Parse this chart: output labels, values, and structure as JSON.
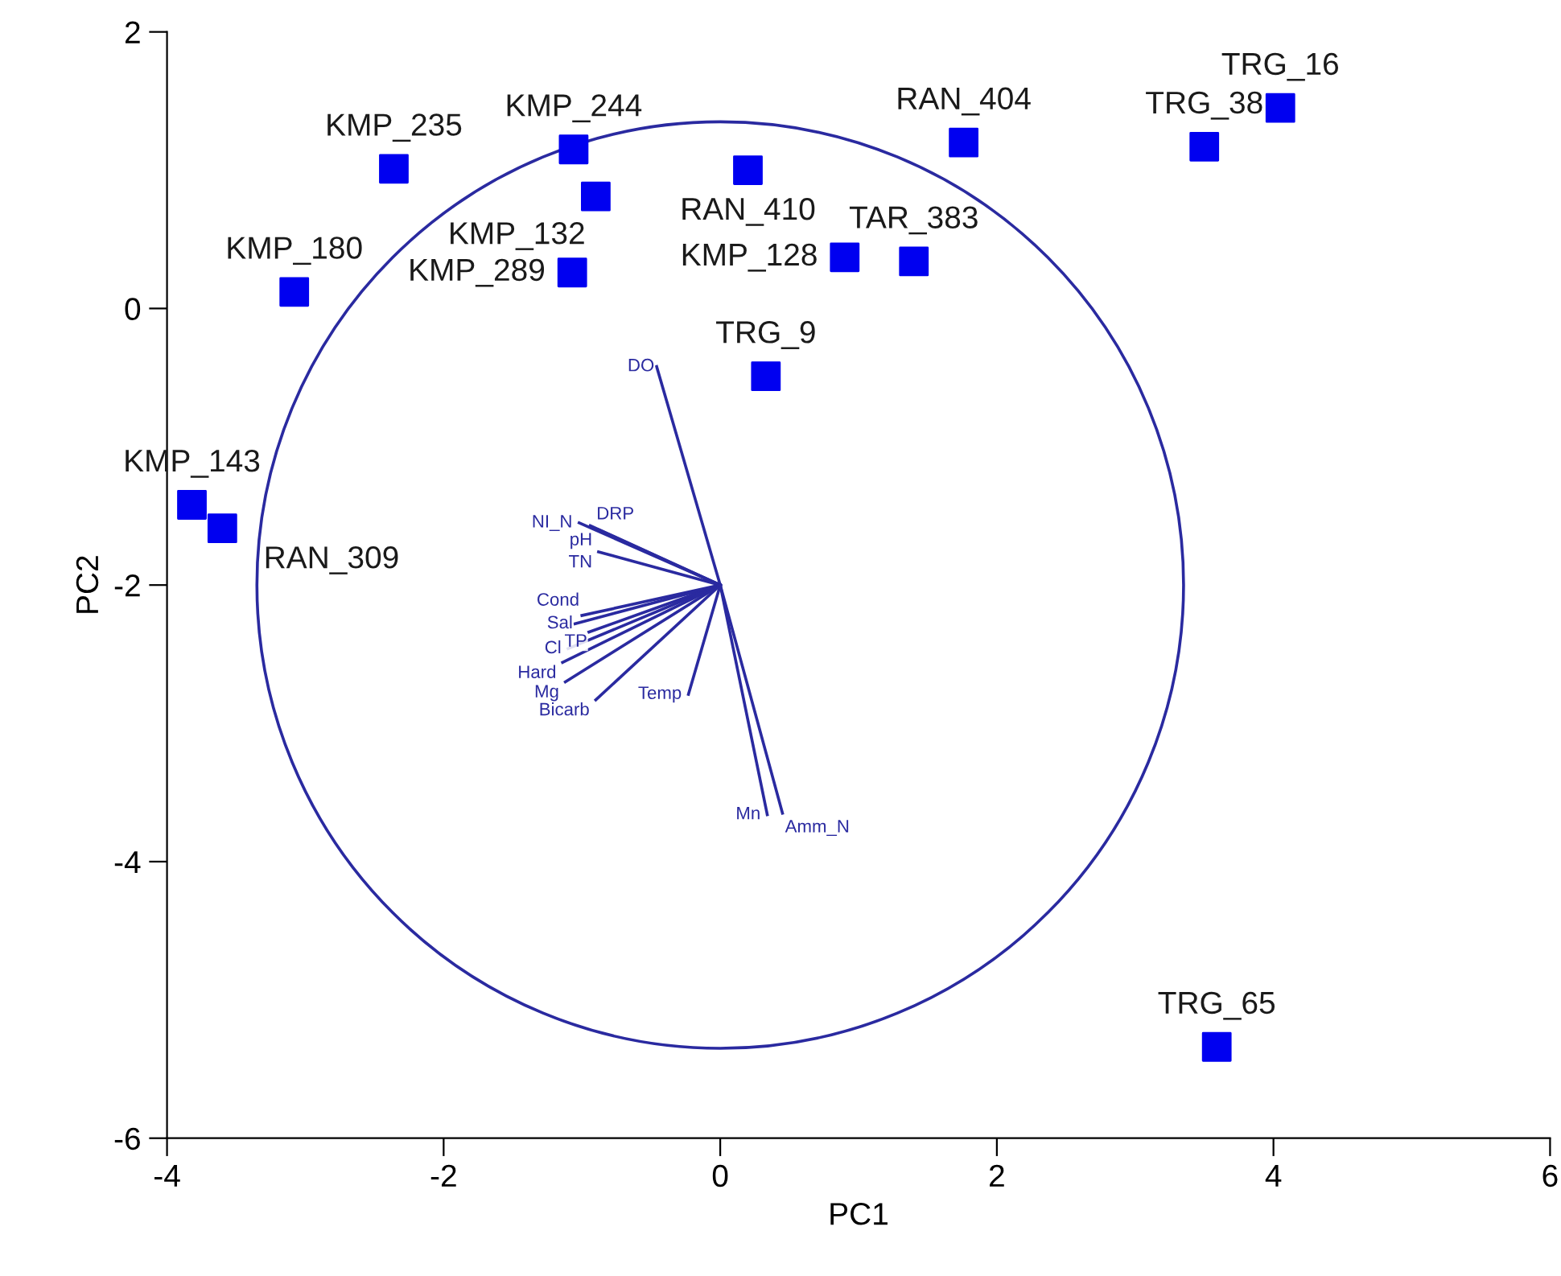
{
  "chart_data": {
    "type": "scatter",
    "xlabel": "PC1",
    "ylabel": "PC2",
    "xlim": [
      -4,
      6
    ],
    "ylim": [
      -6,
      2
    ],
    "xticks": [
      -4,
      -2,
      0,
      2,
      4,
      6
    ],
    "yticks": [
      -6,
      -4,
      -2,
      0,
      2
    ],
    "grid": false,
    "series": [
      {
        "marker": "square",
        "color": "#0000f0",
        "x": [
          -2.36,
          -1.06,
          -0.9,
          0.2,
          1.76,
          3.5,
          4.05,
          -3.08,
          -1.07,
          0.9,
          1.4,
          0.33,
          -3.82,
          -3.6,
          3.59
        ],
        "values": [
          1.01,
          1.15,
          0.81,
          1.0,
          1.2,
          1.17,
          1.45,
          0.12,
          0.26,
          0.37,
          0.34,
          -0.49,
          -1.42,
          -1.59,
          -5.34
        ]
      },
      {
        "type": "line",
        "name": "DO",
        "color": "#2a2aa0",
        "x": [
          0,
          -0.46
        ],
        "values": [
          -2,
          -0.42
        ]
      },
      {
        "type": "line",
        "name": "NI_N",
        "color": "#2a2aa0",
        "x": [
          0,
          -1.02
        ],
        "values": [
          -2,
          -1.55
        ]
      },
      {
        "type": "line",
        "name": "DRP",
        "color": "#2a2aa0",
        "x": [
          0,
          -0.94
        ],
        "values": [
          -2,
          -1.57
        ]
      },
      {
        "type": "line",
        "name": "pH",
        "color": "#2a2aa0",
        "x": [
          0,
          -0.88
        ],
        "values": [
          -2,
          -1.6
        ]
      },
      {
        "type": "line",
        "name": "TN",
        "color": "#2a2aa0",
        "x": [
          0,
          -0.88
        ],
        "values": [
          -2,
          -1.76
        ]
      },
      {
        "type": "line",
        "name": "Cond",
        "color": "#2a2aa0",
        "x": [
          0,
          -1.0
        ],
        "values": [
          -2,
          -2.22
        ]
      },
      {
        "type": "line",
        "name": "Sal",
        "color": "#2a2aa0",
        "x": [
          0,
          -1.05
        ],
        "values": [
          -2,
          -2.28
        ]
      },
      {
        "type": "line",
        "name": "TP",
        "color": "#2a2aa0",
        "x": [
          0,
          -0.95
        ],
        "values": [
          -2,
          -2.34
        ]
      },
      {
        "type": "line",
        "name": "Cl",
        "color": "#2a2aa0",
        "x": [
          0,
          -1.1
        ],
        "values": [
          -2,
          -2.46
        ]
      },
      {
        "type": "line",
        "name": "Hard",
        "color": "#2a2aa0",
        "x": [
          0,
          -1.14
        ],
        "values": [
          -2,
          -2.56
        ]
      },
      {
        "type": "line",
        "name": "Mg",
        "color": "#2a2aa0",
        "x": [
          0,
          -1.12
        ],
        "values": [
          -2,
          -2.7
        ]
      },
      {
        "type": "line",
        "name": "Bicarb",
        "color": "#2a2aa0",
        "x": [
          0,
          -0.9
        ],
        "values": [
          -2,
          -2.83
        ]
      },
      {
        "type": "line",
        "name": "Temp",
        "color": "#2a2aa0",
        "x": [
          0,
          -0.23
        ],
        "values": [
          -2,
          -2.79
        ]
      },
      {
        "type": "line",
        "name": "Mn",
        "color": "#2a2aa0",
        "x": [
          0,
          0.34
        ],
        "values": [
          -2,
          -3.66
        ]
      },
      {
        "type": "line",
        "name": "Amm_N",
        "color": "#2a2aa0",
        "x": [
          0,
          0.45
        ],
        "values": [
          -2,
          -3.65
        ]
      }
    ],
    "annotations": [
      {
        "text": "KMP_235",
        "x": -2.36,
        "y": 1.01
      },
      {
        "text": "KMP_244",
        "x": -1.06,
        "y": 1.15
      },
      {
        "text": "KMP_132",
        "x": -0.9,
        "y": 0.81
      },
      {
        "text": "RAN_410",
        "x": 0.2,
        "y": 1.0
      },
      {
        "text": "RAN_404",
        "x": 1.76,
        "y": 1.2
      },
      {
        "text": "TRG_38",
        "x": 3.5,
        "y": 1.17
      },
      {
        "text": "TRG_16",
        "x": 4.05,
        "y": 1.45
      },
      {
        "text": "KMP_180",
        "x": -3.08,
        "y": 0.12
      },
      {
        "text": "KMP_289",
        "x": -1.07,
        "y": 0.26
      },
      {
        "text": "KMP_128",
        "x": 0.9,
        "y": 0.37
      },
      {
        "text": "TAR_383",
        "x": 1.4,
        "y": 0.34
      },
      {
        "text": "TRG_9",
        "x": 0.33,
        "y": -0.49
      },
      {
        "text": "KMP_143",
        "x": -3.82,
        "y": -1.42
      },
      {
        "text": "RAN_309",
        "x": -3.6,
        "y": -1.59
      },
      {
        "text": "TRG_65",
        "x": 3.59,
        "y": -5.34
      }
    ]
  }
}
